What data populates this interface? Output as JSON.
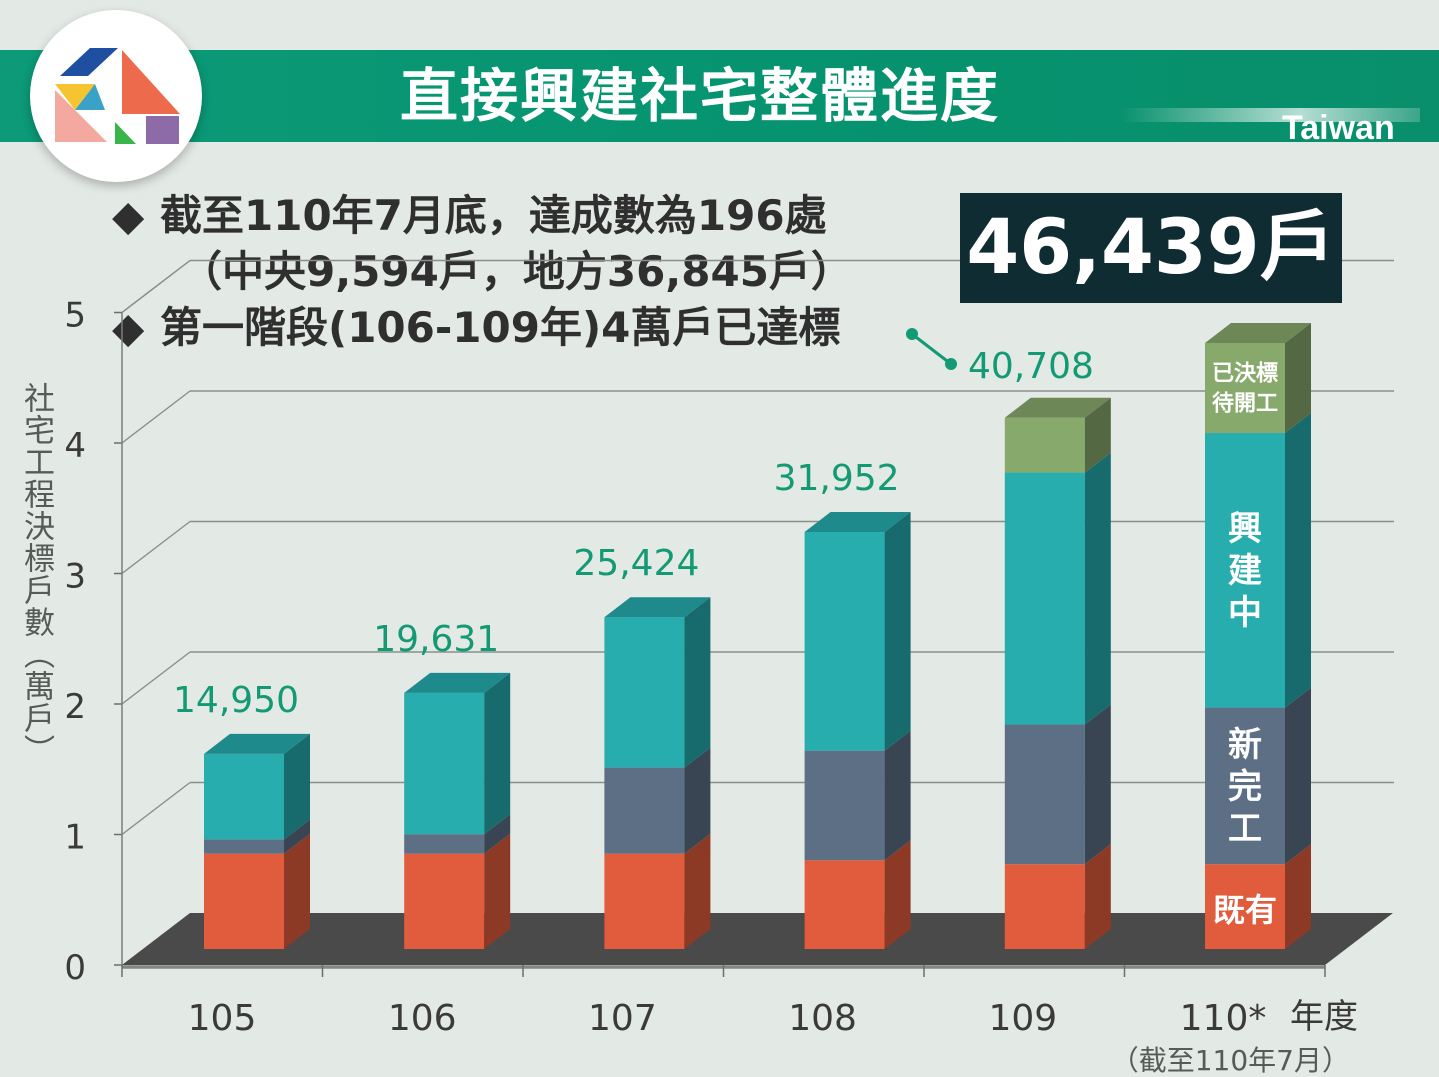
{
  "header": {
    "title": "直接興建社宅整體進度",
    "brand": "Taiwan"
  },
  "summary": {
    "line1": "截至110年7月底，達成數為196處",
    "line2": "（中央9,594戶，地方36,845戶）",
    "line3": "第一階段(106-109年)4萬戶已達標",
    "bullet_symbol": "◆",
    "total": "46,439戶"
  },
  "colors": {
    "banner": "#0a9470",
    "existing": "#e15c3c",
    "new_completed": "#5c6f84",
    "under_construction": "#27adae",
    "awarded_pending": "#88a96c",
    "label_green": "#139a74",
    "floor": "#4a4a4a"
  },
  "chart_data": {
    "type": "bar",
    "stacked": true,
    "style": "3d",
    "categories": [
      "105",
      "106",
      "107",
      "108",
      "109",
      "110*"
    ],
    "series": [
      {
        "name": "既有",
        "key": "existing",
        "values": [
          7300,
          7300,
          7300,
          6800,
          6500,
          6500
        ]
      },
      {
        "name": "新完工",
        "key": "new_completed",
        "values": [
          1100,
          1500,
          6600,
          8400,
          10700,
          12000
        ]
      },
      {
        "name": "興建中",
        "key": "under_construction",
        "values": [
          6550,
          10831,
          11524,
          16752,
          19308,
          21039
        ]
      },
      {
        "name": "已決標待開工",
        "key": "awarded_pending",
        "values": [
          0,
          0,
          0,
          0,
          4200,
          6900
        ]
      }
    ],
    "totals": [
      14950,
      19631,
      25424,
      31952,
      40708,
      46439
    ],
    "data_labels": [
      "14,950",
      "19,631",
      "25,424",
      "31,952",
      "40,708",
      ""
    ],
    "segment_labels": {
      "existing": "既有",
      "new_completed": "新\n完\n工",
      "under_construction": "興\n建\n中",
      "awarded_pending": "已決標\n待開工"
    },
    "ylim": [
      0,
      50000
    ],
    "yticks": [
      0,
      10000,
      20000,
      30000,
      40000,
      50000
    ],
    "ytick_labels": [
      "0",
      "1",
      "2",
      "3",
      "4",
      "5"
    ],
    "ylabel": "社宅工程決標戶數（萬戶）",
    "xlabel": "年度",
    "x_note": "（截至110年7月）",
    "grid": true
  }
}
